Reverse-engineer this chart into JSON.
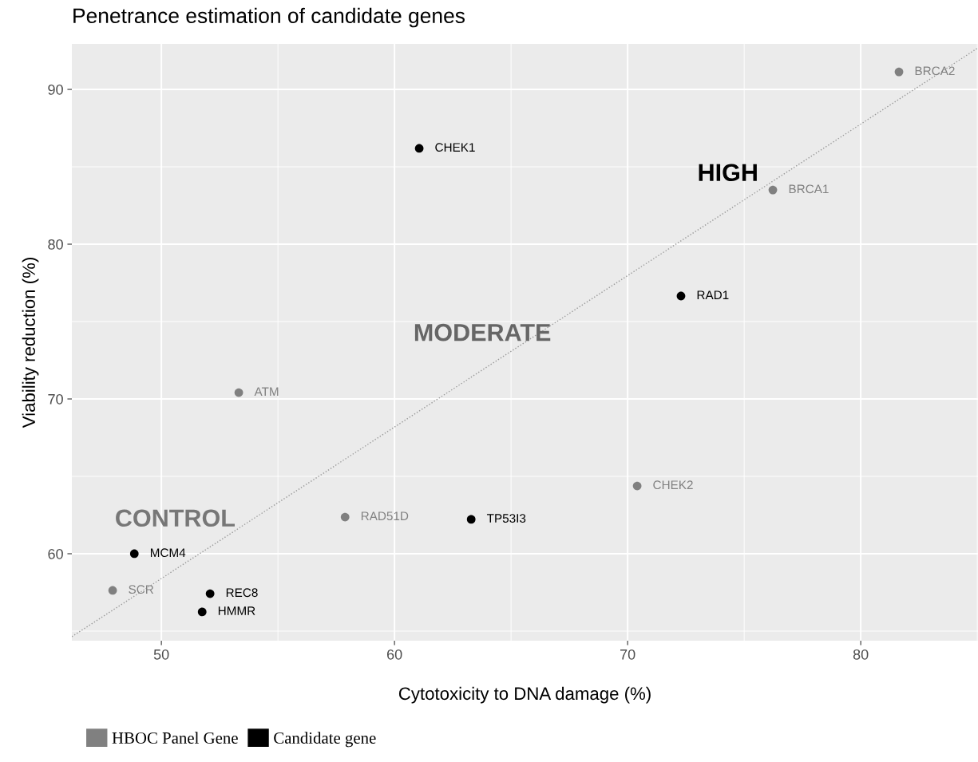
{
  "chart_data": {
    "type": "scatter",
    "title": "Penetrance estimation of candidate genes",
    "xlabel": "Cytotoxicity to DNA damage (%)",
    "ylabel": "Viability reduction (%)",
    "xlim": [
      46.16,
      85.03
    ],
    "ylim": [
      54.38,
      92.94
    ],
    "xticks": [
      50,
      60,
      70,
      80
    ],
    "yticks": [
      60,
      70,
      80,
      90
    ],
    "grid": true,
    "legend": "bottom left",
    "marker": "circle",
    "series": [
      {
        "name": "HBOC Panel Gene",
        "color": "#808080",
        "x": [
          81.64,
          76.23,
          53.32,
          70.41,
          57.88,
          47.91
        ],
        "values": [
          91.13,
          83.5,
          70.41,
          64.38,
          62.37,
          57.63
        ],
        "value_labels": [
          "BRCA2",
          "BRCA1",
          "ATM",
          "CHEK2",
          "RAD51D",
          "SCR"
        ]
      },
      {
        "name": "Candidate gene",
        "color": "#000000",
        "x": [
          61.06,
          72.29,
          63.29,
          48.84,
          52.09,
          51.75
        ],
        "values": [
          86.19,
          76.65,
          62.22,
          60.0,
          57.42,
          56.24
        ],
        "value_labels": [
          "CHEK1",
          "RAD1",
          "TP53I3",
          "MCM4",
          "REC8",
          "HMMR"
        ]
      },
      {
        "type": "line",
        "color": "#999999",
        "line_style": "dotted",
        "marker": "none",
        "x": [
          46.16,
          85.03
        ],
        "values": [
          54.64,
          92.68
        ]
      }
    ],
    "annotations": [
      "HIGH",
      "MODERATE",
      "CONTROL"
    ]
  }
}
